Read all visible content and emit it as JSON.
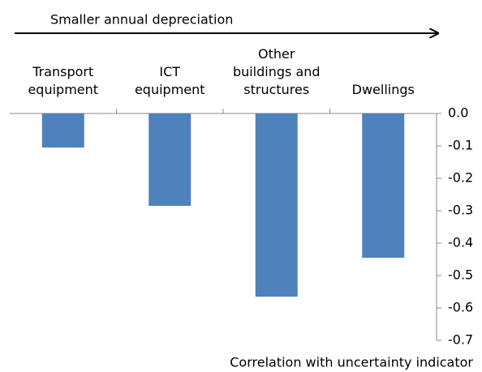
{
  "chart_data": {
    "type": "bar",
    "annotation": "Smaller annual depreciation",
    "x_label": "Correlation with uncertainty indicator",
    "categories": [
      "Transport\nequipment",
      "ICT\nequipment",
      "Other\nbuildings and\nstructures",
      "Dwellings"
    ],
    "values": [
      -0.105,
      -0.285,
      -0.565,
      -0.445
    ],
    "color": "#4f81bd",
    "ylim": [
      -0.7,
      0
    ],
    "yticks": [
      {
        "value": 0,
        "label": "0.0"
      },
      -0.1,
      -0.2,
      -0.3,
      -0.4,
      -0.5,
      -0.6,
      -0.7
    ],
    "axis_side": "right"
  }
}
